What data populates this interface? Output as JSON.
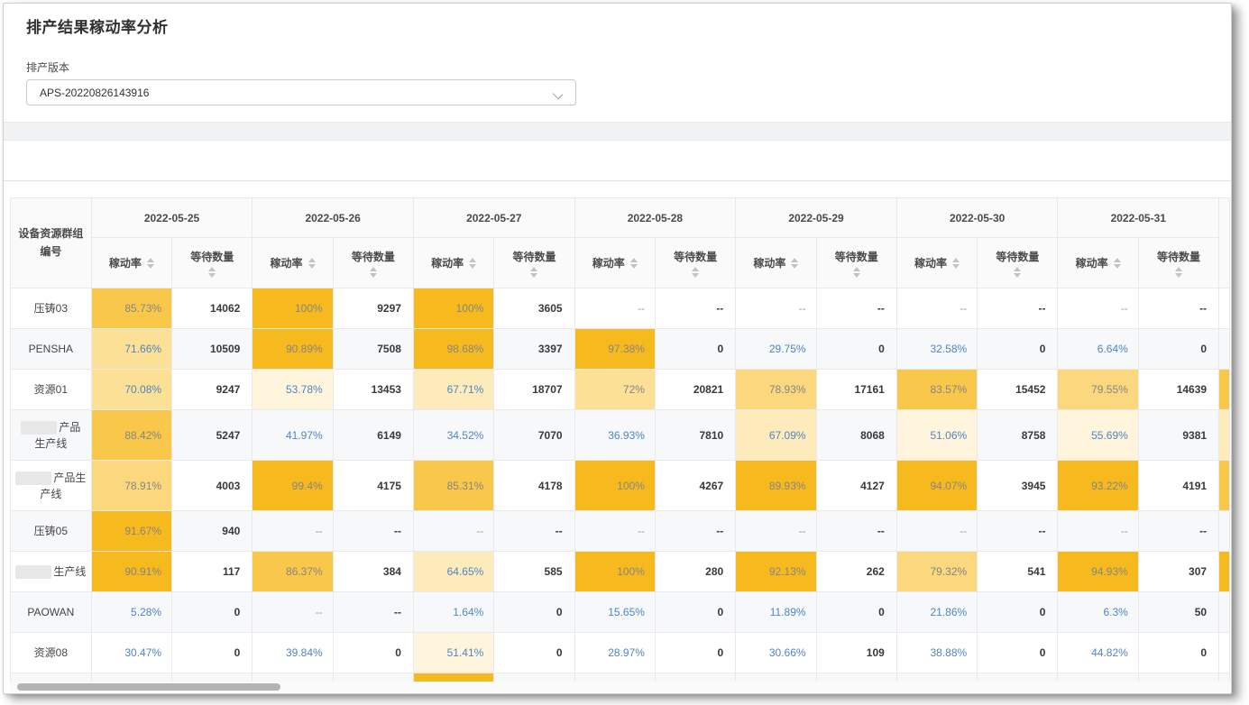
{
  "page": {
    "title": "排产结果稼动率分析"
  },
  "filter": {
    "label": "排产版本",
    "value": "APS-20220826143916",
    "chevron_icon": "chevron-down"
  },
  "colors": {
    "amber_strong": "#F7BA1E",
    "amber_high": "#F9C84A",
    "amber_mid": "#FBD87E",
    "amber_low": "#FCE096",
    "amber_pale": "#FDEBBB",
    "amber_faint": "#FEF5DC",
    "blue_text": "#4E86C4",
    "stripe": "#F7F8FA"
  },
  "chart_data": {
    "type": "heatmap",
    "title": "排产结果稼动率分析",
    "x": [
      "2022-05-25",
      "2022-05-26",
      "2022-05-27",
      "2022-05-28",
      "2022-05-29",
      "2022-05-30",
      "2022-05-31"
    ],
    "rows": [
      "压铸03",
      "PENSHA",
      "资源01",
      "产品生产线",
      "产品生产线",
      "压铸05",
      "生产线",
      "PAOWAN",
      "资源08"
    ],
    "series": [
      {
        "name": "压铸03",
        "rate": [
          85.73,
          100,
          100,
          null,
          null,
          null,
          null
        ],
        "wait": [
          14062,
          9297,
          3605,
          null,
          null,
          null,
          null
        ]
      },
      {
        "name": "PENSHA",
        "rate": [
          71.66,
          90.89,
          98.68,
          97.38,
          29.75,
          32.58,
          6.64
        ],
        "wait": [
          10509,
          7508,
          3397,
          0,
          0,
          0,
          0
        ]
      },
      {
        "name": "资源01",
        "rate": [
          70.08,
          53.78,
          67.71,
          72,
          78.93,
          83.57,
          79.55
        ],
        "wait": [
          9247,
          13453,
          18707,
          20821,
          17161,
          15452,
          14639
        ]
      },
      {
        "name": "产品生产线",
        "rate": [
          88.42,
          41.97,
          34.52,
          36.93,
          67.09,
          51.06,
          55.69
        ],
        "wait": [
          5247,
          6149,
          7070,
          7810,
          8068,
          8758,
          9381
        ]
      },
      {
        "name": "产品生产线",
        "rate": [
          78.91,
          99.4,
          85.31,
          100,
          89.93,
          94.07,
          93.22
        ],
        "wait": [
          4003,
          4175,
          4178,
          4267,
          4127,
          3945,
          4191
        ]
      },
      {
        "name": "压铸05",
        "rate": [
          91.67,
          null,
          null,
          null,
          null,
          null,
          null
        ],
        "wait": [
          940,
          null,
          null,
          null,
          null,
          null,
          null
        ]
      },
      {
        "name": "生产线",
        "rate": [
          90.91,
          86.37,
          64.65,
          100,
          92.13,
          79.32,
          94.93
        ],
        "wait": [
          117,
          384,
          585,
          280,
          262,
          541,
          307
        ]
      },
      {
        "name": "PAOWAN",
        "rate": [
          5.28,
          null,
          1.64,
          15.65,
          11.89,
          21.86,
          6.3
        ],
        "wait": [
          0,
          null,
          0,
          0,
          0,
          0,
          50
        ]
      },
      {
        "name": "资源08",
        "rate": [
          30.47,
          39.84,
          51.41,
          28.97,
          30.66,
          38.88,
          44.82
        ],
        "wait": [
          0,
          0,
          0,
          0,
          109,
          0,
          0
        ]
      }
    ]
  },
  "table": {
    "corner_header": "设备资源群组编号",
    "rate_label": "稼动率",
    "wait_label": "等待数量",
    "empty_text": "--",
    "dates": [
      "2022-05-25",
      "2022-05-26",
      "2022-05-27",
      "2022-05-28",
      "2022-05-29",
      "2022-05-30",
      "2022-05-31"
    ],
    "rows": [
      {
        "lines": [
          "压铸03"
        ],
        "redacted": false,
        "tall": false,
        "sliver": null,
        "cells": [
          {
            "r": "85.73%",
            "bg": "#F9C84A",
            "c": "gray"
          },
          {
            "w": "14062"
          },
          {
            "r": "100%",
            "bg": "#F7BA1E",
            "c": "gray"
          },
          {
            "w": "9297"
          },
          {
            "r": "100%",
            "bg": "#F7BA1E",
            "c": "gray"
          },
          {
            "w": "3605"
          },
          {
            "r": "--"
          },
          {
            "w": "--"
          },
          {
            "r": "--"
          },
          {
            "w": "--"
          },
          {
            "r": "--"
          },
          {
            "w": "--"
          },
          {
            "r": "--"
          },
          {
            "w": "--"
          }
        ]
      },
      {
        "lines": [
          "PENSHA"
        ],
        "redacted": false,
        "tall": false,
        "sliver": null,
        "cells": [
          {
            "r": "71.66%",
            "bg": "#FCE096",
            "c": "blue"
          },
          {
            "w": "10509"
          },
          {
            "r": "90.89%",
            "bg": "#F7BA1E",
            "c": "gray"
          },
          {
            "w": "7508"
          },
          {
            "r": "98.68%",
            "bg": "#F7BA1E",
            "c": "gray"
          },
          {
            "w": "3397"
          },
          {
            "r": "97.38%",
            "bg": "#F7BA1E",
            "c": "gray"
          },
          {
            "w": "0"
          },
          {
            "r": "29.75%",
            "c": "blue"
          },
          {
            "w": "0"
          },
          {
            "r": "32.58%",
            "c": "blue"
          },
          {
            "w": "0"
          },
          {
            "r": "6.64%",
            "c": "blue"
          },
          {
            "w": "0"
          }
        ]
      },
      {
        "lines": [
          "资源01"
        ],
        "redacted": false,
        "tall": false,
        "sliver": "#F9C84A",
        "cells": [
          {
            "r": "70.08%",
            "bg": "#FCE096",
            "c": "blue"
          },
          {
            "w": "9247"
          },
          {
            "r": "53.78%",
            "bg": "#FEF5DC",
            "c": "blue"
          },
          {
            "w": "13453"
          },
          {
            "r": "67.71%",
            "bg": "#FDEBBB",
            "c": "blue"
          },
          {
            "w": "18707"
          },
          {
            "r": "72%",
            "bg": "#FCE096",
            "c": "gray"
          },
          {
            "w": "20821"
          },
          {
            "r": "78.93%",
            "bg": "#FBD87E",
            "c": "gray"
          },
          {
            "w": "17161"
          },
          {
            "r": "83.57%",
            "bg": "#F9C84A",
            "c": "gray"
          },
          {
            "w": "15452"
          },
          {
            "r": "79.55%",
            "bg": "#FBD87E",
            "c": "gray"
          },
          {
            "w": "14639"
          }
        ]
      },
      {
        "lines": [
          "产品",
          "生产线"
        ],
        "redacted": true,
        "tall": true,
        "sliver": "#FDEBBB",
        "cells": [
          {
            "r": "88.42%",
            "bg": "#F9C84A",
            "c": "gray"
          },
          {
            "w": "5247"
          },
          {
            "r": "41.97%",
            "c": "blue"
          },
          {
            "w": "6149"
          },
          {
            "r": "34.52%",
            "c": "blue"
          },
          {
            "w": "7070"
          },
          {
            "r": "36.93%",
            "c": "blue"
          },
          {
            "w": "7810"
          },
          {
            "r": "67.09%",
            "bg": "#FDEBBB",
            "c": "blue"
          },
          {
            "w": "8068"
          },
          {
            "r": "51.06%",
            "bg": "#FEF5DC",
            "c": "blue"
          },
          {
            "w": "8758"
          },
          {
            "r": "55.69%",
            "bg": "#FEF5DC",
            "c": "blue"
          },
          {
            "w": "9381"
          }
        ]
      },
      {
        "lines": [
          "产品生",
          "产线"
        ],
        "redacted": true,
        "tall": true,
        "sliver": "#F9C84A",
        "cells": [
          {
            "r": "78.91%",
            "bg": "#FBD87E",
            "c": "gray"
          },
          {
            "w": "4003"
          },
          {
            "r": "99.4%",
            "bg": "#F7BA1E",
            "c": "gray"
          },
          {
            "w": "4175"
          },
          {
            "r": "85.31%",
            "bg": "#F9C84A",
            "c": "gray"
          },
          {
            "w": "4178"
          },
          {
            "r": "100%",
            "bg": "#F7BA1E",
            "c": "gray"
          },
          {
            "w": "4267"
          },
          {
            "r": "89.93%",
            "bg": "#F7BA1E",
            "c": "gray"
          },
          {
            "w": "4127"
          },
          {
            "r": "94.07%",
            "bg": "#F7BA1E",
            "c": "gray"
          },
          {
            "w": "3945"
          },
          {
            "r": "93.22%",
            "bg": "#F7BA1E",
            "c": "gray"
          },
          {
            "w": "4191"
          }
        ]
      },
      {
        "lines": [
          "压铸05"
        ],
        "redacted": false,
        "tall": false,
        "sliver": null,
        "cells": [
          {
            "r": "91.67%",
            "bg": "#F7BA1E",
            "c": "gray"
          },
          {
            "w": "940"
          },
          {
            "r": "--"
          },
          {
            "w": "--"
          },
          {
            "r": "--"
          },
          {
            "w": "--"
          },
          {
            "r": "--"
          },
          {
            "w": "--"
          },
          {
            "r": "--"
          },
          {
            "w": "--"
          },
          {
            "r": "--"
          },
          {
            "w": "--"
          },
          {
            "r": "--"
          },
          {
            "w": "--"
          }
        ]
      },
      {
        "lines": [
          "生产线"
        ],
        "redacted": true,
        "tall": false,
        "sliver": "#F7BA1E",
        "cells": [
          {
            "r": "90.91%",
            "bg": "#F7BA1E",
            "c": "gray"
          },
          {
            "w": "117"
          },
          {
            "r": "86.37%",
            "bg": "#F9C84A",
            "c": "gray"
          },
          {
            "w": "384"
          },
          {
            "r": "64.65%",
            "bg": "#FDEBBB",
            "c": "blue"
          },
          {
            "w": "585"
          },
          {
            "r": "100%",
            "bg": "#F7BA1E",
            "c": "gray"
          },
          {
            "w": "280"
          },
          {
            "r": "92.13%",
            "bg": "#F7BA1E",
            "c": "gray"
          },
          {
            "w": "262"
          },
          {
            "r": "79.32%",
            "bg": "#FBD87E",
            "c": "gray"
          },
          {
            "w": "541"
          },
          {
            "r": "94.93%",
            "bg": "#F7BA1E",
            "c": "gray"
          },
          {
            "w": "307"
          }
        ]
      },
      {
        "lines": [
          "PAOWAN"
        ],
        "redacted": false,
        "tall": false,
        "sliver": null,
        "cells": [
          {
            "r": "5.28%",
            "c": "blue"
          },
          {
            "w": "0"
          },
          {
            "r": "--"
          },
          {
            "w": "--"
          },
          {
            "r": "1.64%",
            "c": "blue"
          },
          {
            "w": "0"
          },
          {
            "r": "15.65%",
            "c": "blue"
          },
          {
            "w": "0"
          },
          {
            "r": "11.89%",
            "c": "blue"
          },
          {
            "w": "0"
          },
          {
            "r": "21.86%",
            "c": "blue"
          },
          {
            "w": "0"
          },
          {
            "r": "6.3%",
            "c": "blue"
          },
          {
            "w": "50"
          }
        ]
      },
      {
        "lines": [
          "资源08"
        ],
        "redacted": false,
        "tall": false,
        "sliver": null,
        "cells": [
          {
            "r": "30.47%",
            "c": "blue"
          },
          {
            "w": "0"
          },
          {
            "r": "39.84%",
            "c": "blue"
          },
          {
            "w": "0"
          },
          {
            "r": "51.41%",
            "bg": "#FEF5DC",
            "c": "blue"
          },
          {
            "w": "0"
          },
          {
            "r": "28.97%",
            "c": "blue"
          },
          {
            "w": "0"
          },
          {
            "r": "30.66%",
            "c": "blue"
          },
          {
            "w": "109"
          },
          {
            "r": "38.88%",
            "c": "blue"
          },
          {
            "w": "0"
          },
          {
            "r": "44.82%",
            "c": "blue"
          },
          {
            "w": "0"
          }
        ]
      }
    ],
    "partial_row": {
      "amber_day_index": 2,
      "amber_color": "#F7BA1E"
    }
  }
}
